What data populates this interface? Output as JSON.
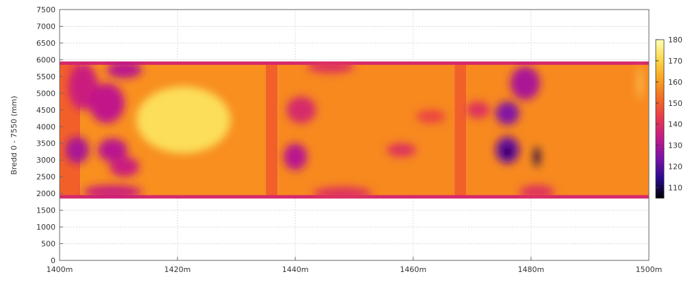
{
  "chart_data": {
    "type": "heatmap",
    "title": "",
    "ylabel": "Bredd 0 - 7550 (mm)",
    "xlabel": "",
    "xlim": [
      1400,
      1500
    ],
    "ylim": [
      0,
      7500
    ],
    "grid": true,
    "x_ticks": [
      {
        "value": 1400,
        "label": "1400m"
      },
      {
        "value": 1420,
        "label": "1420m"
      },
      {
        "value": 1440,
        "label": "1440m"
      },
      {
        "value": 1460,
        "label": "1460m"
      },
      {
        "value": 1480,
        "label": "1480m"
      },
      {
        "value": 1500,
        "label": "1500m"
      }
    ],
    "y_ticks": [
      {
        "value": 0,
        "label": "0"
      },
      {
        "value": 500,
        "label": "500"
      },
      {
        "value": 1000,
        "label": "1000"
      },
      {
        "value": 1500,
        "label": "1500"
      },
      {
        "value": 2000,
        "label": "2000"
      },
      {
        "value": 2500,
        "label": "2500"
      },
      {
        "value": 3000,
        "label": "3000"
      },
      {
        "value": 3500,
        "label": "3500"
      },
      {
        "value": 4000,
        "label": "4000"
      },
      {
        "value": 4500,
        "label": "4500"
      },
      {
        "value": 5000,
        "label": "5000"
      },
      {
        "value": 5500,
        "label": "5500"
      },
      {
        "value": 6000,
        "label": "6000"
      },
      {
        "value": 6500,
        "label": "6500"
      },
      {
        "value": 7000,
        "label": "7000"
      },
      {
        "value": 7500,
        "label": "7500"
      }
    ],
    "colorbar": {
      "range": [
        105,
        180
      ],
      "ticks": [
        {
          "value": 110,
          "label": "110"
        },
        {
          "value": 120,
          "label": "120"
        },
        {
          "value": 130,
          "label": "130"
        },
        {
          "value": 140,
          "label": "140"
        },
        {
          "value": 150,
          "label": "150"
        },
        {
          "value": 160,
          "label": "160"
        },
        {
          "value": 170,
          "label": "170"
        },
        {
          "value": 180,
          "label": "180"
        }
      ],
      "stops": [
        "#000000",
        "#2a0a8c",
        "#7a12a8",
        "#c2198a",
        "#e8384f",
        "#f46a21",
        "#faa21e",
        "#fbd84a",
        "#ffffb4"
      ]
    },
    "data_extent_y": [
      1850,
      5950
    ],
    "sections": [
      {
        "x_start": 1400,
        "x_end": 1403.5,
        "base": 150
      },
      {
        "x_start": 1403.5,
        "x_end": 1435,
        "base": 158
      },
      {
        "x_start": 1435,
        "x_end": 1437,
        "base": 150
      },
      {
        "x_start": 1437,
        "x_end": 1467,
        "base": 157
      },
      {
        "x_start": 1467,
        "x_end": 1469,
        "base": 150
      },
      {
        "x_start": 1469,
        "x_end": 1500,
        "base": 157
      }
    ],
    "features": [
      {
        "x": 1404,
        "y": 5200,
        "rx": 2.5,
        "ry": 700,
        "value": 135
      },
      {
        "x": 1408,
        "y": 4700,
        "rx": 3,
        "ry": 600,
        "value": 133
      },
      {
        "x": 1411,
        "y": 5700,
        "rx": 3,
        "ry": 250,
        "value": 132
      },
      {
        "x": 1403,
        "y": 3300,
        "rx": 2,
        "ry": 400,
        "value": 130
      },
      {
        "x": 1409,
        "y": 3300,
        "rx": 2.5,
        "ry": 350,
        "value": 132
      },
      {
        "x": 1411,
        "y": 2800,
        "rx": 2.5,
        "ry": 300,
        "value": 135
      },
      {
        "x": 1409,
        "y": 2050,
        "rx": 5,
        "ry": 200,
        "value": 135
      },
      {
        "x": 1421,
        "y": 4200,
        "rx": 8,
        "ry": 1000,
        "value": 172
      },
      {
        "x": 1441,
        "y": 4500,
        "rx": 2.5,
        "ry": 400,
        "value": 138
      },
      {
        "x": 1440,
        "y": 3100,
        "rx": 2,
        "ry": 400,
        "value": 132
      },
      {
        "x": 1446,
        "y": 5800,
        "rx": 4,
        "ry": 200,
        "value": 140
      },
      {
        "x": 1448,
        "y": 2000,
        "rx": 5,
        "ry": 200,
        "value": 140
      },
      {
        "x": 1458,
        "y": 3300,
        "rx": 2.5,
        "ry": 200,
        "value": 140
      },
      {
        "x": 1463,
        "y": 4300,
        "rx": 2.5,
        "ry": 200,
        "value": 145
      },
      {
        "x": 1471,
        "y": 4500,
        "rx": 2,
        "ry": 250,
        "value": 140
      },
      {
        "x": 1476,
        "y": 4400,
        "rx": 2,
        "ry": 350,
        "value": 125
      },
      {
        "x": 1476,
        "y": 3300,
        "rx": 2,
        "ry": 400,
        "value": 122
      },
      {
        "x": 1476,
        "y": 3250,
        "rx": 0.8,
        "ry": 150,
        "value": 108
      },
      {
        "x": 1479,
        "y": 5300,
        "rx": 2.5,
        "ry": 500,
        "value": 130
      },
      {
        "x": 1481,
        "y": 3100,
        "rx": 0.5,
        "ry": 300,
        "value": 110
      },
      {
        "x": 1481,
        "y": 2050,
        "rx": 3,
        "ry": 200,
        "value": 140
      },
      {
        "x": 1498.5,
        "y": 5300,
        "rx": 0.25,
        "ry": 500,
        "value": 175
      }
    ]
  }
}
